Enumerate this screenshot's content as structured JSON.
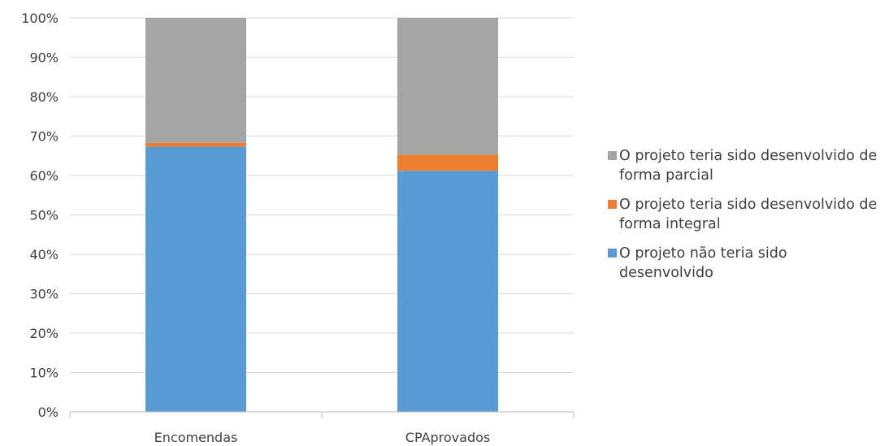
{
  "chart_data": {
    "type": "bar",
    "stacked": true,
    "percent": true,
    "categories": [
      "Encomendas",
      "CPAprovados"
    ],
    "series": [
      {
        "name": "O projeto não teria sido desenvolvido",
        "color": "#5b9bd5",
        "values": [
          67.3,
          61.2
        ]
      },
      {
        "name": "O projeto teria sido desenvolvido de forma integral",
        "color": "#ed7d31",
        "values": [
          1.0,
          4.1
        ]
      },
      {
        "name": "O projeto teria sido desenvolvido de forma parcial",
        "color": "#a5a5a5",
        "values": [
          31.7,
          34.7
        ]
      }
    ],
    "yticks": [
      "0%",
      "10%",
      "20%",
      "30%",
      "40%",
      "50%",
      "60%",
      "70%",
      "80%",
      "90%",
      "100%"
    ],
    "ylim": [
      0,
      100
    ],
    "grid": true,
    "legend_position": "right",
    "title": "",
    "xlabel": "",
    "ylabel": ""
  },
  "legend": {
    "items": [
      {
        "label": "O projeto teria sido desenvolvido de forma parcial",
        "color": "#a5a5a5"
      },
      {
        "label": "O projeto teria sido desenvolvido de forma integral",
        "color": "#ed7d31"
      },
      {
        "label": "O projeto não teria sido desenvolvido",
        "color": "#5b9bd5"
      }
    ]
  }
}
